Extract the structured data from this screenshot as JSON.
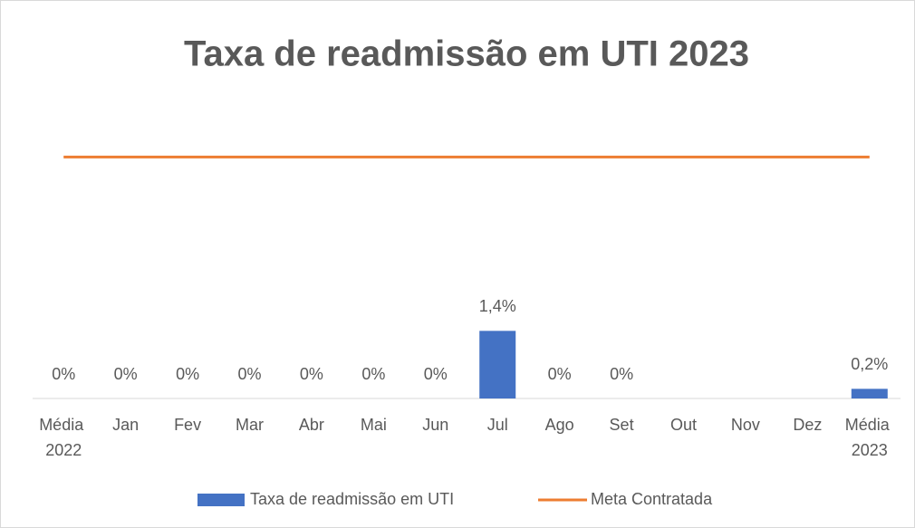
{
  "chart_data": {
    "type": "bar",
    "title": "Taxa de readmissão em UTI 2023",
    "categories": [
      "Média 2022",
      "Jan",
      "Fev",
      "Mar",
      "Abr",
      "Mai",
      "Jun",
      "Jul",
      "Ago",
      "Set",
      "Out",
      "Nov",
      "Dez",
      "Média 2023"
    ],
    "series": [
      {
        "name": "Taxa de readmissão em UTI",
        "type": "bar",
        "color": "#4472c4",
        "values": [
          0,
          0,
          0,
          0,
          0,
          0,
          0,
          1.4,
          0,
          0,
          null,
          null,
          null,
          0.2
        ],
        "value_labels": [
          "0%",
          "0%",
          "0%",
          "0%",
          "0%",
          "0%",
          "0%",
          "1,4%",
          "0%",
          "0%",
          null,
          null,
          null,
          "0,2%"
        ]
      },
      {
        "name": "Meta Contratada",
        "type": "line",
        "color": "#ed7d31",
        "values": [
          5,
          5,
          5,
          5,
          5,
          5,
          5,
          5,
          5,
          5,
          5,
          5,
          5,
          5
        ]
      }
    ],
    "ylim": [
      0,
      6
    ]
  }
}
